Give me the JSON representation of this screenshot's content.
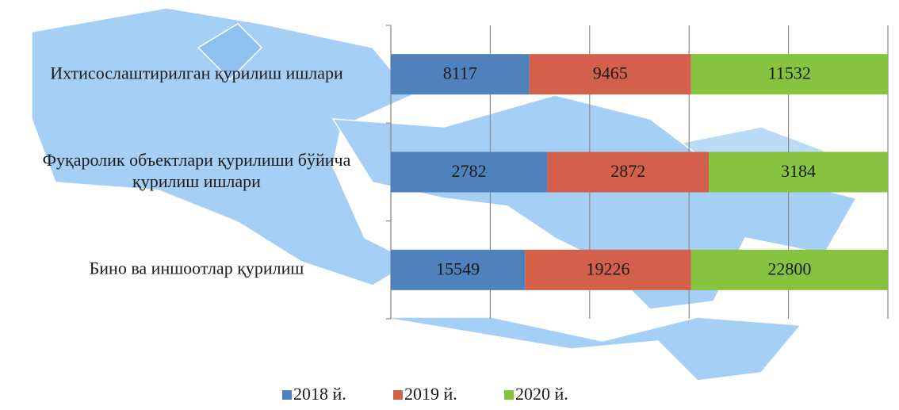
{
  "chart_data": {
    "type": "bar",
    "orientation": "horizontal",
    "stacking": "percent",
    "categories": [
      "Ихтисослаштирилган қурилиш ишлари",
      "Фуқаролик объектлари қурилиши бўйича қурилиш ишлари",
      "Бино ва иншоотлар қурилиш"
    ],
    "series": [
      {
        "name": "2018 й.",
        "color": "#4f81bd",
        "values": [
          8117,
          2782,
          15549
        ]
      },
      {
        "name": "2019 й.",
        "color": "#d2604a",
        "values": [
          9465,
          2872,
          19226
        ]
      },
      {
        "name": "2020 й.",
        "color": "#86c43f",
        "values": [
          11532,
          3184,
          22800
        ]
      }
    ],
    "xlim": [
      0,
      100
    ],
    "xticks": [
      0,
      20,
      40,
      60,
      80,
      100
    ],
    "grid": true,
    "legend": "bottom"
  }
}
